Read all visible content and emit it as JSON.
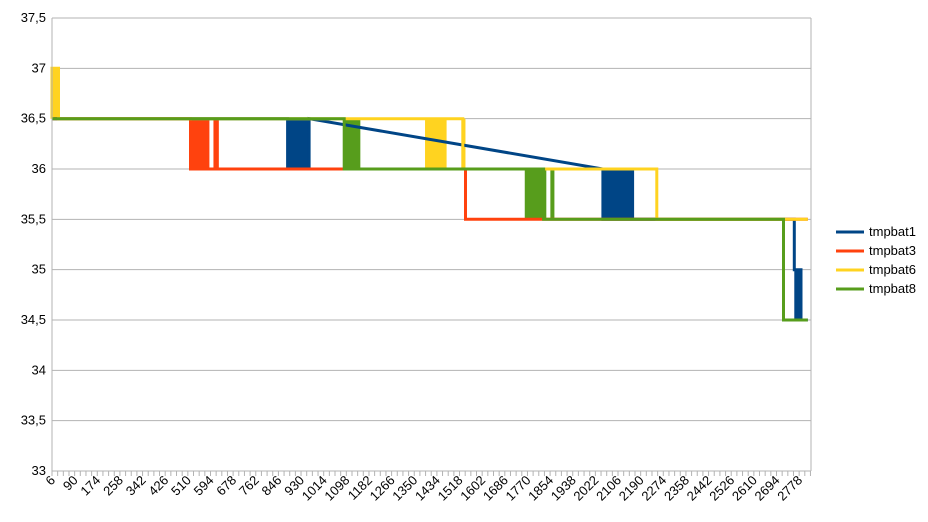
{
  "chart_data": {
    "type": "line",
    "title": "",
    "xlabel": "",
    "ylabel": "",
    "ylim": [
      33,
      37.5
    ],
    "yticks": [
      "33",
      "33,5",
      "34",
      "34,5",
      "35",
      "35,5",
      "36",
      "36,5",
      "37",
      "37,5"
    ],
    "xlim": [
      6,
      2822
    ],
    "xticks": [
      6,
      90,
      174,
      258,
      342,
      426,
      510,
      594,
      678,
      762,
      846,
      930,
      1014,
      1098,
      1182,
      1266,
      1350,
      1434,
      1518,
      1602,
      1686,
      1770,
      1854,
      1938,
      2022,
      2106,
      2190,
      2274,
      2358,
      2442,
      2526,
      2610,
      2694,
      2778
    ],
    "grid": "horizontal",
    "legend_position": "right",
    "series": [
      {
        "name": "tmpbat1",
        "color": "#004586",
        "points": [
          [
            6,
            36.5
          ],
          [
            880,
            36.5
          ],
          [
            880,
            36.0
          ],
          [
            960,
            36.0
          ],
          [
            960,
            36.5
          ],
          [
            2050,
            36.0
          ],
          [
            2050,
            35.5
          ],
          [
            2160,
            35.5
          ],
          [
            2160,
            36.0
          ],
          [
            2160,
            35.5
          ],
          [
            2760,
            35.5
          ],
          [
            2760,
            35.0
          ],
          [
            2785,
            35.0
          ],
          [
            2785,
            34.5
          ],
          [
            2810,
            34.5
          ]
        ],
        "bands": [
          [
            880,
            960,
            36.0,
            36.5
          ],
          [
            2050,
            2160,
            35.5,
            36.0
          ],
          [
            2760,
            2790,
            34.5,
            35.0
          ]
        ]
      },
      {
        "name": "tmpbat3",
        "color": "#ff420e",
        "points": [
          [
            6,
            36.5
          ],
          [
            520,
            36.5
          ],
          [
            520,
            36.0
          ],
          [
            1100,
            36.0
          ],
          [
            1100,
            36.0
          ],
          [
            1540,
            36.0
          ],
          [
            1540,
            35.5
          ],
          [
            2810,
            35.5
          ]
        ],
        "bands": [
          [
            520,
            590,
            36.0,
            36.5
          ],
          [
            605,
            625,
            36.0,
            36.5
          ]
        ]
      },
      {
        "name": "tmpbat6",
        "color": "#ffd320",
        "points": [
          [
            6,
            36.5
          ],
          [
            6,
            37.0
          ],
          [
            30,
            37.0
          ],
          [
            30,
            36.5
          ],
          [
            1530,
            36.5
          ],
          [
            1530,
            36.0
          ],
          [
            2250,
            36.0
          ],
          [
            2250,
            35.5
          ],
          [
            2810,
            35.5
          ]
        ],
        "bands": [
          [
            6,
            30,
            36.5,
            37.0
          ],
          [
            1390,
            1470,
            36.0,
            36.5
          ],
          [
            1530,
            1540,
            36.0,
            36.5
          ]
        ]
      },
      {
        "name": "tmpbat8",
        "color": "#579d1c",
        "points": [
          [
            6,
            36.5
          ],
          [
            1090,
            36.5
          ],
          [
            1090,
            36.0
          ],
          [
            1830,
            36.0
          ],
          [
            1830,
            35.5
          ],
          [
            2720,
            35.5
          ],
          [
            2720,
            34.5
          ],
          [
            2810,
            34.5
          ]
        ],
        "bands": [
          [
            1090,
            1150,
            36.0,
            36.5
          ],
          [
            1760,
            1840,
            35.5,
            36.0
          ],
          [
            1855,
            1870,
            35.5,
            36.0
          ]
        ]
      }
    ]
  }
}
